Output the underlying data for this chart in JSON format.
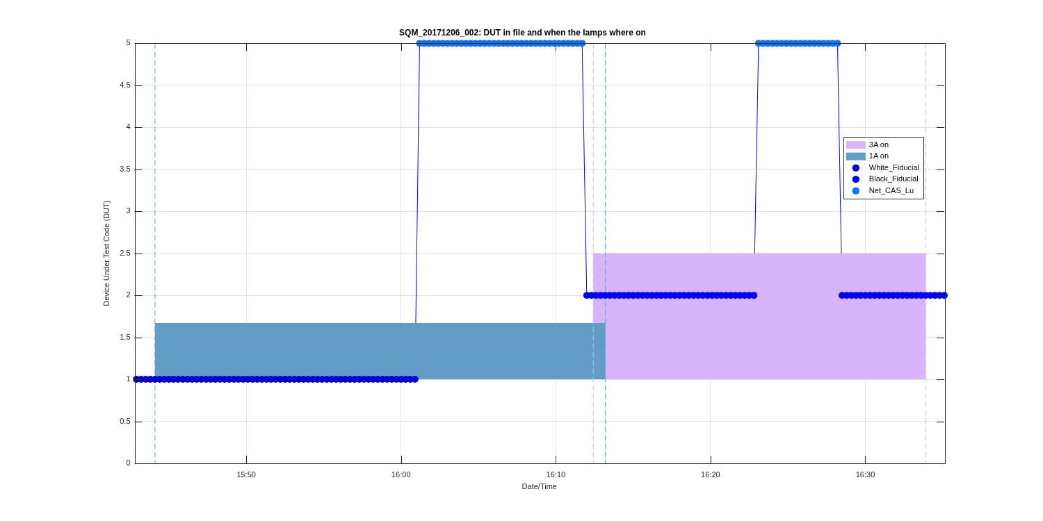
{
  "chart_data": {
    "type": "scatter",
    "title": "SQM_20171206_002: DUT in file and when the lamps where on",
    "xlabel": "Date/Time",
    "ylabel": "Device Under Test Code (DUT)",
    "xlim": [
      15.713,
      16.585
    ],
    "xticks": [
      {
        "value": 15.8333,
        "label": "15:50"
      },
      {
        "value": 16,
        "label": "16:00"
      },
      {
        "value": 16.1667,
        "label": "16:10"
      },
      {
        "value": 16.3333,
        "label": "16:20"
      },
      {
        "value": 16.5,
        "label": "16:30"
      }
    ],
    "ylim": [
      0,
      5
    ],
    "yticks": [
      0,
      0.5,
      1,
      1.5,
      2,
      2.5,
      3,
      3.5,
      4,
      4.5,
      5
    ],
    "grid": true,
    "legend": "top right",
    "marker": "circle",
    "series": [
      {
        "type": "area",
        "name": "3A on",
        "color": "#d8b4fc",
        "marker": "none",
        "x": [
          16.207,
          16.565
        ],
        "values": [
          null,
          null
        ],
        "lower": [
          1,
          1
        ],
        "upper": [
          2.5,
          2.5
        ]
      },
      {
        "type": "area",
        "name": "1A on",
        "color": "#619dc6",
        "marker": "none",
        "x": [
          15.735,
          16.22
        ],
        "values": [
          null,
          null
        ],
        "lower": [
          1,
          1
        ],
        "upper": [
          1.67,
          1.67
        ]
      },
      {
        "type": "line",
        "color": "#0000ff",
        "marker": "none",
        "line_style": "solid",
        "x": [
          15.715,
          16.015,
          16.02,
          16.195,
          16.2,
          16.38,
          16.385,
          16.47,
          16.475,
          16.585
        ],
        "values": [
          1,
          1,
          5,
          5,
          2,
          2,
          5,
          5,
          2,
          2
        ]
      },
      {
        "type": "scatter",
        "name": "White_Fiducial",
        "color": "#0000d4",
        "x": [
          15.715,
          15.72,
          15.725,
          15.73,
          15.735,
          15.74,
          15.745,
          15.75,
          15.755,
          15.76,
          15.765,
          15.77,
          15.775,
          15.78,
          15.785,
          15.79,
          15.795,
          15.8,
          15.805,
          15.81,
          15.815,
          15.82,
          15.825,
          15.83,
          15.835,
          15.84,
          15.845,
          15.85,
          15.855,
          15.86,
          15.865,
          15.87,
          15.875,
          15.88,
          15.885,
          15.89,
          15.895,
          15.9,
          15.905,
          15.91,
          15.915,
          15.92,
          15.925,
          15.93,
          15.935,
          15.94,
          15.945,
          15.95,
          15.955,
          15.96,
          15.965,
          15.97,
          15.975,
          15.98,
          15.985,
          15.99,
          15.995,
          16,
          16.005,
          16.01,
          16.015
        ],
        "values": [
          1,
          1,
          1,
          1,
          1,
          1,
          1,
          1,
          1,
          1,
          1,
          1,
          1,
          1,
          1,
          1,
          1,
          1,
          1,
          1,
          1,
          1,
          1,
          1,
          1,
          1,
          1,
          1,
          1,
          1,
          1,
          1,
          1,
          1,
          1,
          1,
          1,
          1,
          1,
          1,
          1,
          1,
          1,
          1,
          1,
          1,
          1,
          1,
          1,
          1,
          1,
          1,
          1,
          1,
          1,
          1,
          1,
          1,
          1,
          1,
          1
        ]
      },
      {
        "type": "scatter",
        "name": "Black_Fiducial",
        "color": "#0000ff",
        "x": [
          16.2,
          16.205,
          16.21,
          16.215,
          16.22,
          16.225,
          16.23,
          16.235,
          16.24,
          16.245,
          16.25,
          16.255,
          16.26,
          16.265,
          16.27,
          16.275,
          16.28,
          16.285,
          16.29,
          16.295,
          16.3,
          16.305,
          16.31,
          16.315,
          16.32,
          16.325,
          16.33,
          16.335,
          16.34,
          16.345,
          16.35,
          16.355,
          16.36,
          16.365,
          16.37,
          16.375,
          16.38,
          16.475,
          16.48,
          16.485,
          16.49,
          16.495,
          16.5,
          16.505,
          16.51,
          16.515,
          16.52,
          16.525,
          16.53,
          16.535,
          16.54,
          16.545,
          16.55,
          16.555,
          16.56,
          16.565,
          16.57,
          16.575,
          16.58,
          16.585
        ],
        "values": [
          2,
          2,
          2,
          2,
          2,
          2,
          2,
          2,
          2,
          2,
          2,
          2,
          2,
          2,
          2,
          2,
          2,
          2,
          2,
          2,
          2,
          2,
          2,
          2,
          2,
          2,
          2,
          2,
          2,
          2,
          2,
          2,
          2,
          2,
          2,
          2,
          2,
          2,
          2,
          2,
          2,
          2,
          2,
          2,
          2,
          2,
          2,
          2,
          2,
          2,
          2,
          2,
          2,
          2,
          2,
          2,
          2,
          2,
          2,
          2
        ]
      },
      {
        "type": "scatter",
        "name": "Net_CAS_Lu",
        "color": "#0a74ff",
        "x": [
          16.02,
          16.025,
          16.03,
          16.035,
          16.04,
          16.045,
          16.05,
          16.055,
          16.06,
          16.065,
          16.07,
          16.075,
          16.08,
          16.085,
          16.09,
          16.095,
          16.1,
          16.105,
          16.11,
          16.115,
          16.12,
          16.125,
          16.13,
          16.135,
          16.14,
          16.145,
          16.15,
          16.155,
          16.16,
          16.165,
          16.17,
          16.175,
          16.18,
          16.185,
          16.19,
          16.195,
          16.385,
          16.39,
          16.395,
          16.4,
          16.405,
          16.41,
          16.415,
          16.42,
          16.425,
          16.43,
          16.435,
          16.44,
          16.445,
          16.45,
          16.455,
          16.46,
          16.465,
          16.47
        ],
        "values": [
          5,
          5,
          5,
          5,
          5,
          5,
          5,
          5,
          5,
          5,
          5,
          5,
          5,
          5,
          5,
          5,
          5,
          5,
          5,
          5,
          5,
          5,
          5,
          5,
          5,
          5,
          5,
          5,
          5,
          5,
          5,
          5,
          5,
          5,
          5,
          5,
          5,
          5,
          5,
          5,
          5,
          5,
          5,
          5,
          5,
          5,
          5,
          5,
          5,
          5,
          5,
          5,
          5,
          5
        ]
      }
    ],
    "ref_lines": [
      {
        "axis": "x",
        "value": 15.735,
        "color": "#5fa2d0",
        "line_style": "dashed"
      },
      {
        "axis": "x",
        "value": 16.22,
        "color": "#5fa2d0",
        "line_style": "dashed"
      },
      {
        "axis": "x",
        "value": 16.207,
        "color": "#d8b4fc",
        "line_style": "dashed"
      },
      {
        "axis": "x",
        "value": 16.565,
        "color": "#d8b4fc",
        "line_style": "dashed"
      }
    ]
  }
}
